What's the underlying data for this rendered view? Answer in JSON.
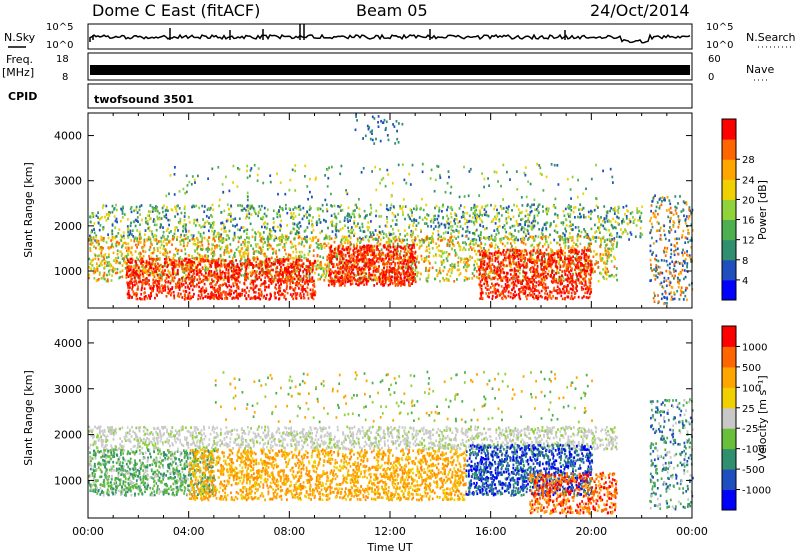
{
  "header": {
    "station": "Dome C East (fitACF)",
    "beam": "Beam 05",
    "date": "24/Oct/2014"
  },
  "noise_panel": {
    "left_label": "N.Sky",
    "left_top": "10^5",
    "left_bottom": "10^0",
    "right_top": "10^5",
    "right_bottom": "10^0",
    "right_label": "N.Search"
  },
  "freq_panel": {
    "left_label_1": "Freq.",
    "left_label_2": "[MHz]",
    "left_top": "18",
    "left_bottom": "8",
    "right_top": "60",
    "right_bottom": "0",
    "right_label": "Nave"
  },
  "cpid": {
    "label": "CPID",
    "value": "twofsound 3501"
  },
  "chart_data": [
    {
      "type": "heatmap",
      "title": "",
      "ylabel": "Slant Range [km]",
      "xlabel": "",
      "x_range_hours": [
        0,
        24
      ],
      "y_range_km": [
        180,
        4500
      ],
      "y_ticks": [
        "1000",
        "2000",
        "3000",
        "4000"
      ],
      "colorbar": {
        "label": "Power [dB]",
        "ticks": [
          "4",
          "8",
          "12",
          "16",
          "20",
          "24",
          "28"
        ],
        "colors": [
          "#0000ff",
          "#1f4fbf",
          "#2f8f6f",
          "#4caf50",
          "#8fd23a",
          "#f0d000",
          "#ffa500",
          "#ff6600",
          "#ff0000"
        ]
      }
    },
    {
      "type": "heatmap",
      "title": "",
      "ylabel": "Slant Range [km]",
      "xlabel": "Time UT",
      "x_range_hours": [
        0,
        24
      ],
      "y_range_km": [
        180,
        4500
      ],
      "y_ticks": [
        "1000",
        "2000",
        "3000",
        "4000"
      ],
      "x_ticks": [
        "00:00",
        "04:00",
        "08:00",
        "12:00",
        "16:00",
        "20:00",
        "00:00"
      ],
      "colorbar": {
        "label": "Velocity [m s⁻¹]",
        "ticks": [
          "1000",
          "500",
          "100",
          "25",
          "-25",
          "-100",
          "-500",
          "-1000"
        ],
        "colors": [
          "#0000ff",
          "#1f4fbf",
          "#2f8f6f",
          "#6abf3a",
          "#c8c8c8",
          "#f0d000",
          "#ffa500",
          "#ff6600",
          "#ff0000"
        ]
      }
    }
  ]
}
